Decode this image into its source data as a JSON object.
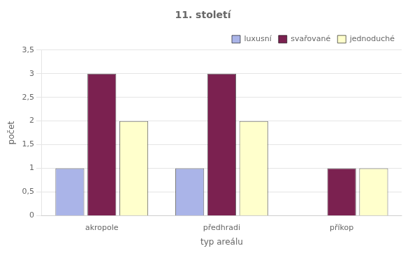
{
  "chart_data": {
    "type": "bar",
    "title": "11. století",
    "categories": [
      "akropole",
      "předhradi",
      "příkop"
    ],
    "series": [
      {
        "name": "luxusní",
        "color": "#aab4e8",
        "values": [
          1,
          1,
          0
        ]
      },
      {
        "name": "svařované",
        "color": "#7b2150",
        "values": [
          3,
          3,
          1
        ]
      },
      {
        "name": "jednoduché",
        "color": "#ffffcc",
        "values": [
          2,
          2,
          1
        ]
      }
    ],
    "xlabel": "typ areálu",
    "ylabel": "počet",
    "ylim": [
      0,
      3.5
    ],
    "yticks": [
      0,
      {
        "value": 0.5,
        "label": "0,5"
      },
      1,
      {
        "value": 1.5,
        "label": "1,5"
      },
      2,
      {
        "value": 2.5,
        "label": "2,5"
      },
      3,
      {
        "value": 3.5,
        "label": "3,5"
      }
    ],
    "grid": true,
    "legend": "upper right"
  }
}
